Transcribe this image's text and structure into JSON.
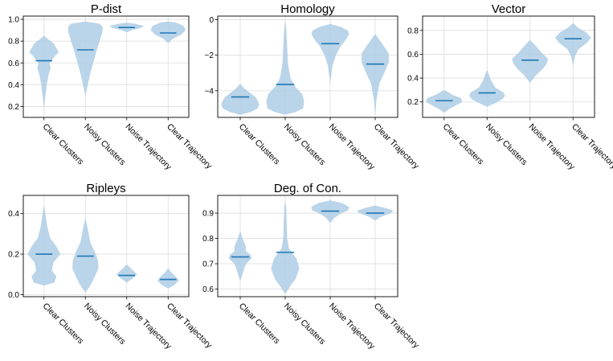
{
  "chart_data": [
    {
      "type": "violin",
      "title": "P-dist",
      "categories": [
        "Clear Clusters",
        "Noisy Clusters",
        "Noise Trajectory",
        "Clear Trajectory"
      ],
      "ylim": [
        0.1,
        1.03
      ],
      "yticks": [
        0.2,
        0.4,
        0.6,
        0.8,
        1.0
      ],
      "ytick_labels": [
        "0.2",
        "0.4",
        "0.6",
        "0.8",
        "1.0"
      ],
      "grid": true,
      "medians": [
        0.62,
        0.72,
        0.925,
        0.875
      ],
      "violins": [
        [
          [
            0.18,
            0.0
          ],
          [
            0.3,
            0.08
          ],
          [
            0.42,
            0.18
          ],
          [
            0.5,
            0.28
          ],
          [
            0.55,
            0.38
          ],
          [
            0.6,
            0.32
          ],
          [
            0.66,
            0.62
          ],
          [
            0.7,
            0.85
          ],
          [
            0.74,
            0.7
          ],
          [
            0.78,
            0.55
          ],
          [
            0.82,
            0.22
          ],
          [
            0.85,
            0.0
          ]
        ],
        [
          [
            0.3,
            0.0
          ],
          [
            0.4,
            0.14
          ],
          [
            0.5,
            0.28
          ],
          [
            0.6,
            0.45
          ],
          [
            0.7,
            0.62
          ],
          [
            0.8,
            0.82
          ],
          [
            0.88,
            0.98
          ],
          [
            0.93,
            1.0
          ],
          [
            0.96,
            0.82
          ],
          [
            0.98,
            0.0
          ]
        ],
        [
          [
            0.88,
            0.0
          ],
          [
            0.9,
            0.28
          ],
          [
            0.92,
            0.8
          ],
          [
            0.94,
            1.0
          ],
          [
            0.96,
            0.45
          ],
          [
            0.97,
            0.0
          ]
        ],
        [
          [
            0.78,
            0.0
          ],
          [
            0.82,
            0.25
          ],
          [
            0.86,
            0.75
          ],
          [
            0.9,
            1.0
          ],
          [
            0.94,
            0.9
          ],
          [
            0.97,
            0.45
          ],
          [
            0.98,
            0.0
          ]
        ]
      ]
    },
    {
      "type": "violin",
      "title": "Homology",
      "categories": [
        "Clear Clusters",
        "Noisy Clusters",
        "Noise Trajectory",
        "Clear Trajectory"
      ],
      "ylim": [
        -5.5,
        0.2
      ],
      "yticks": [
        -4,
        -2,
        0
      ],
      "ytick_labels": [
        "−4",
        "−2",
        "0"
      ],
      "grid": true,
      "medians": [
        -4.35,
        -3.65,
        -1.35,
        -2.5
      ],
      "violins": [
        [
          [
            -5.35,
            0.0
          ],
          [
            -5.2,
            0.55
          ],
          [
            -5.0,
            0.92
          ],
          [
            -4.8,
            1.0
          ],
          [
            -4.6,
            0.95
          ],
          [
            -4.35,
            0.8
          ],
          [
            -4.1,
            0.5
          ],
          [
            -3.85,
            0.2
          ],
          [
            -3.6,
            0.0
          ]
        ],
        [
          [
            -5.35,
            0.0
          ],
          [
            -5.2,
            0.55
          ],
          [
            -5.0,
            0.95
          ],
          [
            -4.6,
            1.0
          ],
          [
            -4.2,
            0.9
          ],
          [
            -3.8,
            0.55
          ],
          [
            -3.3,
            0.28
          ],
          [
            -2.5,
            0.15
          ],
          [
            -1.5,
            0.1
          ],
          [
            -0.6,
            0.06
          ],
          [
            0.0,
            0.0
          ]
        ],
        [
          [
            -3.6,
            0.0
          ],
          [
            -2.6,
            0.12
          ],
          [
            -2.0,
            0.3
          ],
          [
            -1.5,
            0.55
          ],
          [
            -1.1,
            0.85
          ],
          [
            -0.8,
            1.0
          ],
          [
            -0.6,
            0.92
          ],
          [
            -0.4,
            0.55
          ],
          [
            -0.25,
            0.0
          ]
        ],
        [
          [
            -5.4,
            0.0
          ],
          [
            -4.5,
            0.07
          ],
          [
            -3.6,
            0.22
          ],
          [
            -3.0,
            0.48
          ],
          [
            -2.4,
            0.72
          ],
          [
            -1.9,
            0.72
          ],
          [
            -1.4,
            0.4
          ],
          [
            -0.8,
            0.0
          ]
        ]
      ]
    },
    {
      "type": "violin",
      "title": "Vector",
      "categories": [
        "Clear Clusters",
        "Noisy Clusters",
        "Noise Trajectory",
        "Clear Trajectory"
      ],
      "ylim": [
        0.07,
        0.92
      ],
      "yticks": [
        0.2,
        0.4,
        0.6,
        0.8
      ],
      "ytick_labels": [
        "0.2",
        "0.4",
        "0.6",
        "0.8"
      ],
      "grid": true,
      "medians": [
        0.21,
        0.275,
        0.55,
        0.73
      ],
      "violins": [
        [
          [
            0.11,
            0.0
          ],
          [
            0.14,
            0.28
          ],
          [
            0.17,
            0.65
          ],
          [
            0.2,
            1.0
          ],
          [
            0.23,
            0.95
          ],
          [
            0.26,
            0.45
          ],
          [
            0.3,
            0.0
          ]
        ],
        [
          [
            0.16,
            0.0
          ],
          [
            0.19,
            0.45
          ],
          [
            0.22,
            0.82
          ],
          [
            0.25,
            1.0
          ],
          [
            0.28,
            0.9
          ],
          [
            0.32,
            0.45
          ],
          [
            0.38,
            0.22
          ],
          [
            0.43,
            0.1
          ],
          [
            0.47,
            0.0
          ]
        ],
        [
          [
            0.36,
            0.0
          ],
          [
            0.42,
            0.3
          ],
          [
            0.48,
            0.72
          ],
          [
            0.52,
            0.92
          ],
          [
            0.56,
            1.0
          ],
          [
            0.62,
            0.6
          ],
          [
            0.67,
            0.32
          ],
          [
            0.72,
            0.0
          ]
        ],
        [
          [
            0.5,
            0.0
          ],
          [
            0.58,
            0.1
          ],
          [
            0.64,
            0.3
          ],
          [
            0.7,
            0.8
          ],
          [
            0.74,
            1.0
          ],
          [
            0.78,
            0.75
          ],
          [
            0.82,
            0.3
          ],
          [
            0.86,
            0.0
          ]
        ]
      ]
    },
    {
      "type": "violin",
      "title": "Ripleys",
      "categories": [
        "Clear Clusters",
        "Noisy Clusters",
        "Noise Trajectory",
        "Clear Trajectory"
      ],
      "ylim": [
        -0.01,
        0.49
      ],
      "yticks": [
        0.0,
        0.2,
        0.4
      ],
      "ytick_labels": [
        "0.0",
        "0.2",
        "0.4"
      ],
      "grid": true,
      "medians": [
        0.2,
        0.19,
        0.095,
        0.075
      ],
      "violins": [
        [
          [
            0.045,
            0.0
          ],
          [
            0.06,
            0.6
          ],
          [
            0.09,
            0.72
          ],
          [
            0.12,
            0.45
          ],
          [
            0.16,
            0.55
          ],
          [
            0.2,
            0.95
          ],
          [
            0.24,
            0.7
          ],
          [
            0.28,
            0.35
          ],
          [
            0.34,
            0.18
          ],
          [
            0.4,
            0.08
          ],
          [
            0.44,
            0.0
          ]
        ],
        [
          [
            0.01,
            0.0
          ],
          [
            0.05,
            0.32
          ],
          [
            0.09,
            0.55
          ],
          [
            0.13,
            0.75
          ],
          [
            0.17,
            0.72
          ],
          [
            0.21,
            0.55
          ],
          [
            0.26,
            0.28
          ],
          [
            0.32,
            0.15
          ],
          [
            0.38,
            0.0
          ]
        ],
        [
          [
            0.06,
            0.0
          ],
          [
            0.08,
            0.35
          ],
          [
            0.1,
            0.6
          ],
          [
            0.12,
            0.35
          ],
          [
            0.15,
            0.0
          ]
        ],
        [
          [
            0.03,
            0.0
          ],
          [
            0.05,
            0.4
          ],
          [
            0.07,
            0.62
          ],
          [
            0.09,
            0.42
          ],
          [
            0.11,
            0.18
          ],
          [
            0.13,
            0.0
          ]
        ]
      ]
    },
    {
      "type": "violin",
      "title": "Deg. of Con.",
      "categories": [
        "Clear Clusters",
        "Noisy Clusters",
        "Noise Trajectory",
        "Clear Trajectory"
      ],
      "ylim": [
        0.57,
        0.97
      ],
      "yticks": [
        0.6,
        0.7,
        0.8,
        0.9
      ],
      "ytick_labels": [
        "0.6",
        "0.7",
        "0.8",
        "0.9"
      ],
      "grid": true,
      "medians": [
        0.727,
        0.745,
        0.908,
        0.9
      ],
      "violins": [
        [
          [
            0.63,
            0.0
          ],
          [
            0.66,
            0.12
          ],
          [
            0.7,
            0.3
          ],
          [
            0.72,
            0.6
          ],
          [
            0.735,
            0.55
          ],
          [
            0.75,
            0.3
          ],
          [
            0.77,
            0.3
          ],
          [
            0.8,
            0.12
          ],
          [
            0.83,
            0.0
          ]
        ],
        [
          [
            0.58,
            0.0
          ],
          [
            0.61,
            0.25
          ],
          [
            0.64,
            0.55
          ],
          [
            0.68,
            0.75
          ],
          [
            0.72,
            0.6
          ],
          [
            0.76,
            0.2
          ],
          [
            0.8,
            0.1
          ],
          [
            0.86,
            0.08
          ],
          [
            0.92,
            0.05
          ],
          [
            0.95,
            0.0
          ]
        ],
        [
          [
            0.86,
            0.0
          ],
          [
            0.88,
            0.2
          ],
          [
            0.9,
            0.6
          ],
          [
            0.91,
            0.95
          ],
          [
            0.925,
            1.0
          ],
          [
            0.94,
            0.6
          ],
          [
            0.95,
            0.0
          ]
        ],
        [
          [
            0.87,
            0.0
          ],
          [
            0.885,
            0.3
          ],
          [
            0.9,
            0.85
          ],
          [
            0.91,
            0.95
          ],
          [
            0.92,
            0.55
          ],
          [
            0.93,
            0.0
          ]
        ]
      ]
    }
  ]
}
